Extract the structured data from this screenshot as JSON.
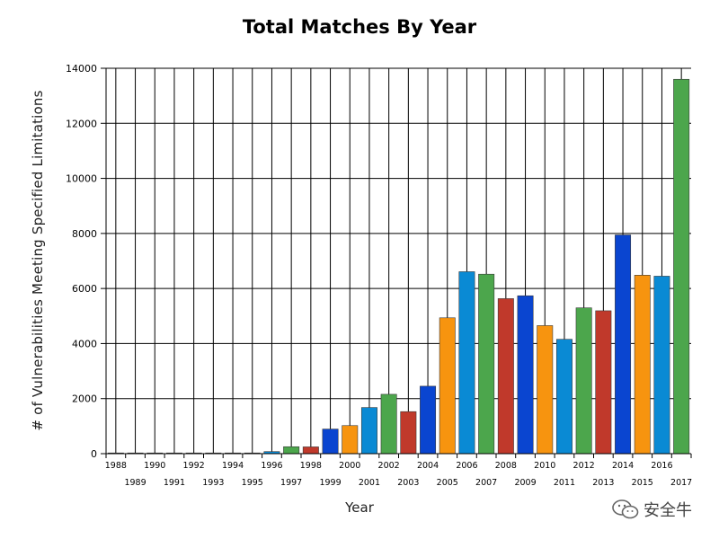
{
  "chart_data": {
    "type": "bar",
    "title": "Total Matches By Year",
    "xlabel": "Year",
    "ylabel": "# of Vulnerabilities Meeting Specified Limitations",
    "ylim": [
      0,
      14000
    ],
    "yticks": [
      0,
      2000,
      4000,
      6000,
      8000,
      10000,
      12000,
      14000
    ],
    "grid": true,
    "categories": [
      "1988",
      "1989",
      "1990",
      "1991",
      "1992",
      "1993",
      "1994",
      "1995",
      "1996",
      "1997",
      "1998",
      "1999",
      "2000",
      "2001",
      "2002",
      "2003",
      "2004",
      "2005",
      "2006",
      "2007",
      "2008",
      "2009",
      "2010",
      "2011",
      "2012",
      "2013",
      "2014",
      "2015",
      "2016",
      "2017"
    ],
    "values": [
      2,
      3,
      11,
      15,
      13,
      13,
      25,
      25,
      75,
      252,
      246,
      894,
      1020,
      1677,
      2156,
      1527,
      2451,
      4935,
      6610,
      6520,
      5632,
      5736,
      4652,
      4155,
      5297,
      5191,
      7946,
      6484,
      6447,
      13600
    ],
    "colors": [
      "#0a45d0",
      "#f7940f",
      "#0a8ad4",
      "#4ca64c",
      "#c0392b",
      "#0a45d0",
      "#f7940f",
      "#0a8ad4",
      "#0a8ad4",
      "#4ca64c",
      "#c0392b",
      "#0a45d0",
      "#f7940f",
      "#0a8ad4",
      "#4ca64c",
      "#c0392b",
      "#0a45d0",
      "#f7940f",
      "#0a8ad4",
      "#4ca64c",
      "#c0392b",
      "#0a45d0",
      "#f7940f",
      "#0a8ad4",
      "#4ca64c",
      "#c0392b",
      "#0a45d0",
      "#f7940f",
      "#0a8ad4",
      "#4ca64c"
    ]
  },
  "watermark": {
    "text": "安全牛",
    "icon": "wechat-icon"
  }
}
